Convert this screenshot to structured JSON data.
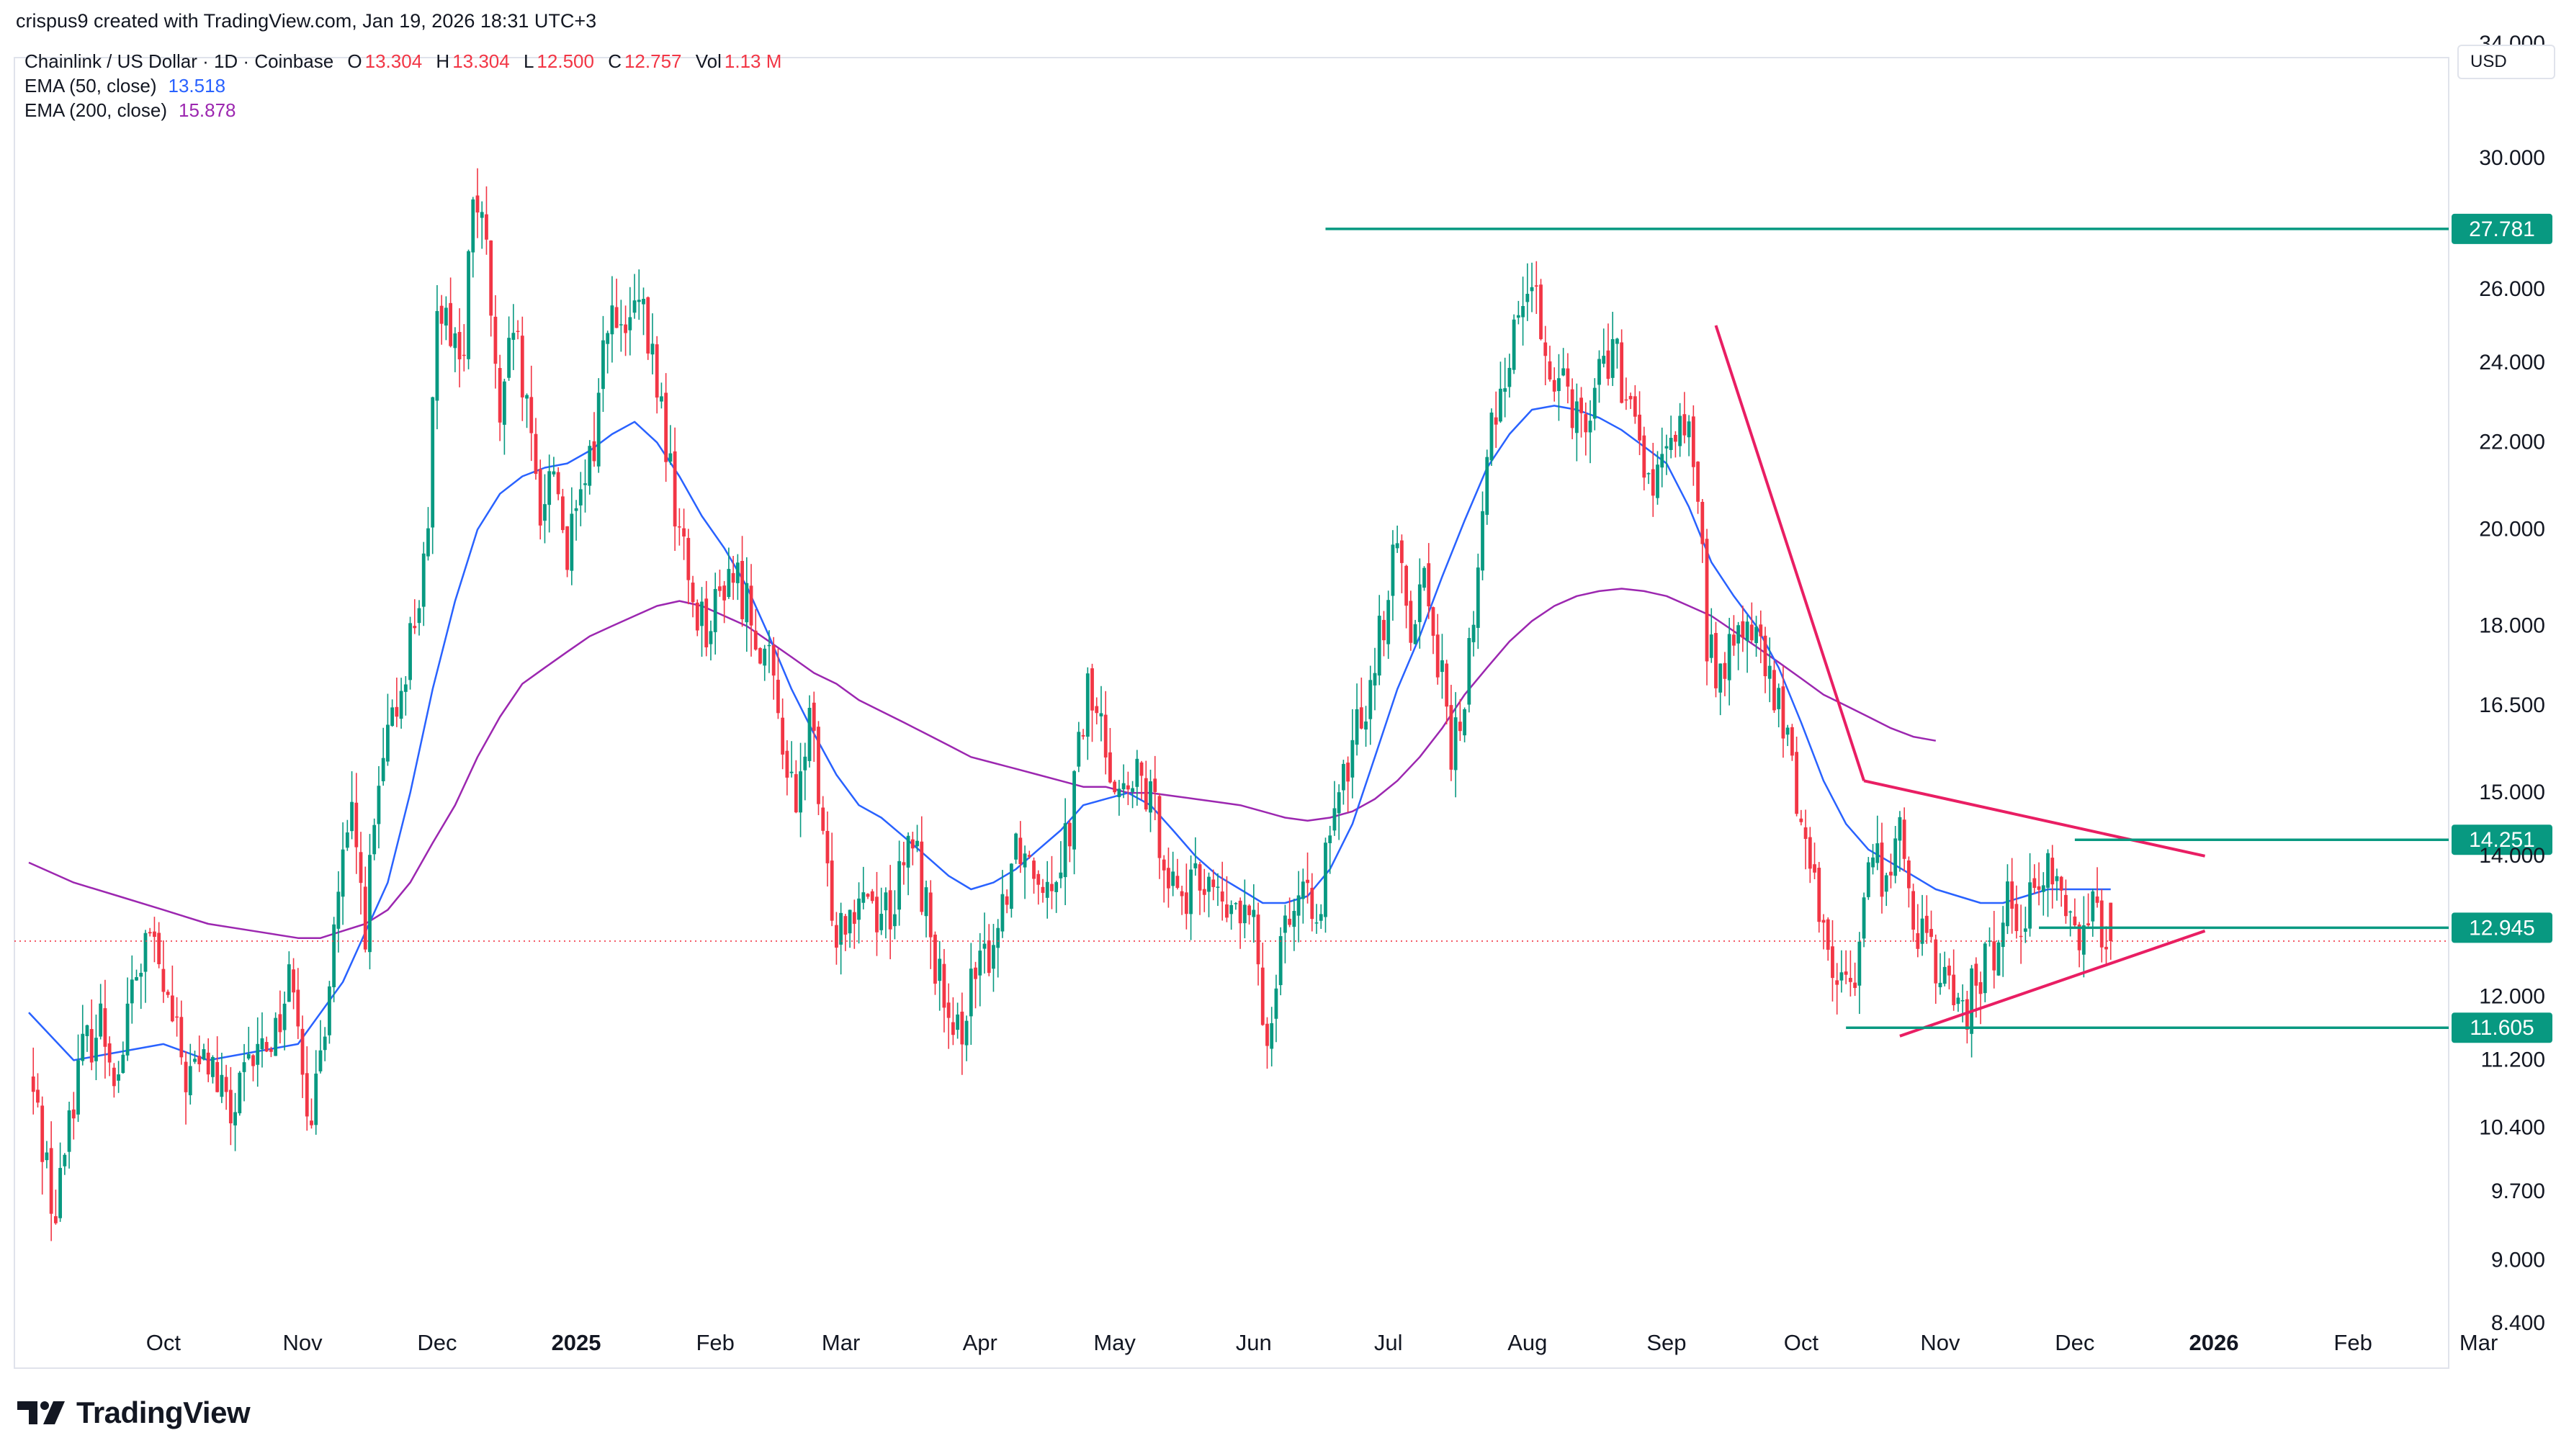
{
  "header": {
    "credit": "crispus9 created with TradingView.com, Jan 19, 2026 18:31 UTC+3",
    "symbol": "Chainlink / US Dollar · 1D · Coinbase",
    "ohlc": {
      "o_label": "O",
      "o": "13.304",
      "h_label": "H",
      "h": "13.304",
      "l_label": "L",
      "l": "12.500",
      "c_label": "C",
      "c": "12.757",
      "vol_label": "Vol",
      "vol": "1.13 M"
    },
    "ema50": {
      "label": "EMA (50, close)",
      "value": "13.518"
    },
    "ema200": {
      "label": "EMA (200, close)",
      "value": "15.878"
    }
  },
  "currency": "USD",
  "logo_text": "TradingView",
  "colors": {
    "up": "#089981",
    "down": "#f23645",
    "ema50": "#2962ff",
    "ema200": "#9c27b0",
    "trend": "#e91e63",
    "level": "#089981"
  },
  "chart_data": {
    "type": "candlestick",
    "title": "Chainlink / US Dollar · 1D · Coinbase",
    "yscale": "log",
    "ylim": [
      8.0,
      33.5
    ],
    "y_ticks": [
      "34.000",
      "30.000",
      "26.000",
      "24.000",
      "22.000",
      "20.000",
      "18.000",
      "16.500",
      "15.000",
      "14.000",
      "12.000",
      "11.200",
      "10.400",
      "9.700",
      "9.000",
      "8.400"
    ],
    "x_labels": [
      {
        "label": "Oct",
        "day": 0
      },
      {
        "label": "Nov",
        "day": 31
      },
      {
        "label": "Dec",
        "day": 61
      },
      {
        "label": "2025",
        "day": 92,
        "bold": true
      },
      {
        "label": "Feb",
        "day": 123
      },
      {
        "label": "Mar",
        "day": 151
      },
      {
        "label": "Apr",
        "day": 182
      },
      {
        "label": "May",
        "day": 212
      },
      {
        "label": "Jun",
        "day": 243
      },
      {
        "label": "Jul",
        "day": 273
      },
      {
        "label": "Aug",
        "day": 304
      },
      {
        "label": "Sep",
        "day": 335
      },
      {
        "label": "Oct",
        "day": 365
      },
      {
        "label": "Nov",
        "day": 396
      },
      {
        "label": "Dec",
        "day": 426
      },
      {
        "label": "2026",
        "day": 457,
        "bold": true
      },
      {
        "label": "Feb",
        "day": 488
      },
      {
        "label": "Mar",
        "day": 516
      }
    ],
    "start_day": -30,
    "end_day": 475,
    "price_path": [
      [
        -30,
        11.0
      ],
      [
        -27,
        10.3
      ],
      [
        -24,
        9.4
      ],
      [
        -21,
        10.6
      ],
      [
        -18,
        11.3
      ],
      [
        -14,
        11.7
      ],
      [
        -10,
        11.0
      ],
      [
        -7,
        12.1
      ],
      [
        -3,
        12.8
      ],
      [
        0,
        12.1
      ],
      [
        5,
        11.0
      ],
      [
        10,
        11.2
      ],
      [
        15,
        10.5
      ],
      [
        20,
        11.2
      ],
      [
        25,
        11.6
      ],
      [
        29,
        12.4
      ],
      [
        33,
        10.2
      ],
      [
        36,
        11.8
      ],
      [
        39,
        13.5
      ],
      [
        42,
        14.5
      ],
      [
        45,
        13.0
      ],
      [
        48,
        15.0
      ],
      [
        52,
        16.5
      ],
      [
        56,
        18.2
      ],
      [
        59,
        19.5
      ],
      [
        61,
        26.0
      ],
      [
        64,
        25.0
      ],
      [
        67,
        24.0
      ],
      [
        69,
        29.0
      ],
      [
        72,
        27.0
      ],
      [
        75,
        22.0
      ],
      [
        78,
        25.0
      ],
      [
        81,
        22.5
      ],
      [
        84,
        20.5
      ],
      [
        87,
        21.5
      ],
      [
        90,
        19.5
      ],
      [
        93,
        20.5
      ],
      [
        96,
        22.0
      ],
      [
        99,
        25.5
      ],
      [
        102,
        24.5
      ],
      [
        106,
        25.5
      ],
      [
        110,
        23.5
      ],
      [
        114,
        20.5
      ],
      [
        118,
        18.5
      ],
      [
        122,
        18.0
      ],
      [
        126,
        19.2
      ],
      [
        130,
        18.5
      ],
      [
        134,
        17.5
      ],
      [
        138,
        16.0
      ],
      [
        141,
        14.5
      ],
      [
        144,
        16.5
      ],
      [
        147,
        14.0
      ],
      [
        150,
        13.0
      ],
      [
        153,
        13.3
      ],
      [
        156,
        13.6
      ],
      [
        159,
        13.2
      ],
      [
        163,
        13.3
      ],
      [
        167,
        14.3
      ],
      [
        170,
        13.2
      ],
      [
        173,
        12.2
      ],
      [
        176,
        11.2
      ],
      [
        179,
        12.0
      ],
      [
        182,
        12.3
      ],
      [
        186,
        13.0
      ],
      [
        190,
        14.3
      ],
      [
        194,
        13.9
      ],
      [
        198,
        13.7
      ],
      [
        202,
        14.5
      ],
      [
        206,
        16.8
      ],
      [
        210,
        15.8
      ],
      [
        214,
        14.9
      ],
      [
        218,
        15.2
      ],
      [
        222,
        14.4
      ],
      [
        225,
        13.6
      ],
      [
        229,
        13.4
      ],
      [
        233,
        13.8
      ],
      [
        236,
        13.1
      ],
      [
        239,
        13.2
      ],
      [
        243,
        12.9
      ],
      [
        246,
        11.4
      ],
      [
        249,
        13.0
      ],
      [
        252,
        13.3
      ],
      [
        255,
        13.2
      ],
      [
        258,
        13.5
      ],
      [
        262,
        14.8
      ],
      [
        265,
        15.8
      ],
      [
        268,
        16.7
      ],
      [
        272,
        18.2
      ],
      [
        275,
        19.6
      ],
      [
        278,
        18.2
      ],
      [
        281,
        19.0
      ],
      [
        284,
        17.5
      ],
      [
        287,
        15.6
      ],
      [
        290,
        16.6
      ],
      [
        293,
        19.0
      ],
      [
        296,
        22.5
      ],
      [
        299,
        23.8
      ],
      [
        302,
        25.4
      ],
      [
        305,
        26.5
      ],
      [
        308,
        23.5
      ],
      [
        311,
        24.2
      ],
      [
        314,
        23.0
      ],
      [
        317,
        22.5
      ],
      [
        320,
        23.8
      ],
      [
        323,
        24.5
      ],
      [
        326,
        22.8
      ],
      [
        329,
        22.0
      ],
      [
        332,
        20.8
      ],
      [
        335,
        21.5
      ],
      [
        338,
        22.8
      ],
      [
        341,
        21.8
      ],
      [
        344,
        17.8
      ],
      [
        347,
        17.0
      ],
      [
        350,
        17.6
      ],
      [
        353,
        18.2
      ],
      [
        356,
        17.4
      ],
      [
        360,
        16.4
      ],
      [
        363,
        15.5
      ],
      [
        366,
        14.2
      ],
      [
        369,
        13.3
      ],
      [
        372,
        12.5
      ],
      [
        375,
        12.0
      ],
      [
        378,
        12.7
      ],
      [
        381,
        14.2
      ],
      [
        384,
        13.6
      ],
      [
        387,
        14.3
      ],
      [
        390,
        13.2
      ],
      [
        393,
        12.6
      ],
      [
        396,
        12.3
      ],
      [
        399,
        12.0
      ],
      [
        402,
        11.9
      ],
      [
        405,
        12.3
      ],
      [
        408,
        12.6
      ],
      [
        411,
        13.4
      ],
      [
        414,
        13.2
      ],
      [
        417,
        13.3
      ],
      [
        420,
        14.0
      ],
      [
        423,
        13.3
      ],
      [
        426,
        12.9
      ],
      [
        430,
        13.3
      ],
      [
        434,
        12.8
      ]
    ],
    "ema50": [
      [
        -30,
        11.8
      ],
      [
        -20,
        11.2
      ],
      [
        -10,
        11.3
      ],
      [
        0,
        11.4
      ],
      [
        10,
        11.2
      ],
      [
        20,
        11.3
      ],
      [
        30,
        11.4
      ],
      [
        40,
        12.2
      ],
      [
        50,
        13.6
      ],
      [
        55,
        15.0
      ],
      [
        60,
        16.8
      ],
      [
        65,
        18.5
      ],
      [
        70,
        20.0
      ],
      [
        75,
        20.8
      ],
      [
        80,
        21.2
      ],
      [
        85,
        21.4
      ],
      [
        90,
        21.5
      ],
      [
        95,
        21.8
      ],
      [
        100,
        22.2
      ],
      [
        105,
        22.5
      ],
      [
        110,
        22.0
      ],
      [
        115,
        21.2
      ],
      [
        120,
        20.3
      ],
      [
        125,
        19.6
      ],
      [
        130,
        18.8
      ],
      [
        135,
        17.8
      ],
      [
        140,
        16.8
      ],
      [
        145,
        16.0
      ],
      [
        150,
        15.3
      ],
      [
        155,
        14.8
      ],
      [
        160,
        14.6
      ],
      [
        165,
        14.3
      ],
      [
        170,
        14.0
      ],
      [
        175,
        13.7
      ],
      [
        180,
        13.5
      ],
      [
        185,
        13.6
      ],
      [
        190,
        13.8
      ],
      [
        195,
        14.1
      ],
      [
        200,
        14.4
      ],
      [
        205,
        14.8
      ],
      [
        210,
        14.9
      ],
      [
        215,
        15.0
      ],
      [
        220,
        14.8
      ],
      [
        225,
        14.4
      ],
      [
        230,
        14.0
      ],
      [
        235,
        13.7
      ],
      [
        240,
        13.5
      ],
      [
        245,
        13.3
      ],
      [
        250,
        13.3
      ],
      [
        255,
        13.4
      ],
      [
        260,
        13.8
      ],
      [
        265,
        14.5
      ],
      [
        270,
        15.6
      ],
      [
        275,
        16.8
      ],
      [
        280,
        17.8
      ],
      [
        285,
        19.0
      ],
      [
        290,
        20.2
      ],
      [
        295,
        21.4
      ],
      [
        300,
        22.2
      ],
      [
        305,
        22.8
      ],
      [
        310,
        22.9
      ],
      [
        315,
        22.8
      ],
      [
        320,
        22.6
      ],
      [
        325,
        22.3
      ],
      [
        330,
        21.9
      ],
      [
        335,
        21.5
      ],
      [
        340,
        20.5
      ],
      [
        345,
        19.3
      ],
      [
        350,
        18.6
      ],
      [
        355,
        18.0
      ],
      [
        360,
        17.2
      ],
      [
        365,
        16.2
      ],
      [
        370,
        15.2
      ],
      [
        375,
        14.5
      ],
      [
        380,
        14.1
      ],
      [
        385,
        13.9
      ],
      [
        390,
        13.7
      ],
      [
        395,
        13.5
      ],
      [
        400,
        13.4
      ],
      [
        405,
        13.3
      ],
      [
        410,
        13.3
      ],
      [
        415,
        13.4
      ],
      [
        420,
        13.5
      ],
      [
        425,
        13.5
      ],
      [
        430,
        13.5
      ],
      [
        434,
        13.5
      ]
    ],
    "ema200": [
      [
        -30,
        13.9
      ],
      [
        -20,
        13.6
      ],
      [
        -10,
        13.4
      ],
      [
        0,
        13.2
      ],
      [
        10,
        13.0
      ],
      [
        20,
        12.9
      ],
      [
        30,
        12.8
      ],
      [
        35,
        12.8
      ],
      [
        40,
        12.9
      ],
      [
        45,
        13.0
      ],
      [
        50,
        13.2
      ],
      [
        55,
        13.6
      ],
      [
        60,
        14.2
      ],
      [
        65,
        14.8
      ],
      [
        70,
        15.6
      ],
      [
        75,
        16.3
      ],
      [
        80,
        16.9
      ],
      [
        85,
        17.2
      ],
      [
        90,
        17.5
      ],
      [
        95,
        17.8
      ],
      [
        100,
        18.0
      ],
      [
        105,
        18.2
      ],
      [
        110,
        18.4
      ],
      [
        115,
        18.5
      ],
      [
        120,
        18.4
      ],
      [
        125,
        18.2
      ],
      [
        130,
        18.0
      ],
      [
        135,
        17.7
      ],
      [
        140,
        17.4
      ],
      [
        145,
        17.1
      ],
      [
        150,
        16.9
      ],
      [
        155,
        16.6
      ],
      [
        160,
        16.4
      ],
      [
        165,
        16.2
      ],
      [
        170,
        16.0
      ],
      [
        175,
        15.8
      ],
      [
        180,
        15.6
      ],
      [
        185,
        15.5
      ],
      [
        190,
        15.4
      ],
      [
        195,
        15.3
      ],
      [
        200,
        15.2
      ],
      [
        205,
        15.1
      ],
      [
        210,
        15.1
      ],
      [
        215,
        15.0
      ],
      [
        220,
        15.0
      ],
      [
        225,
        14.95
      ],
      [
        230,
        14.9
      ],
      [
        235,
        14.85
      ],
      [
        240,
        14.8
      ],
      [
        245,
        14.7
      ],
      [
        250,
        14.6
      ],
      [
        255,
        14.55
      ],
      [
        260,
        14.6
      ],
      [
        265,
        14.7
      ],
      [
        270,
        14.9
      ],
      [
        275,
        15.2
      ],
      [
        280,
        15.6
      ],
      [
        285,
        16.1
      ],
      [
        290,
        16.7
      ],
      [
        295,
        17.2
      ],
      [
        300,
        17.7
      ],
      [
        305,
        18.1
      ],
      [
        310,
        18.4
      ],
      [
        315,
        18.6
      ],
      [
        320,
        18.7
      ],
      [
        325,
        18.75
      ],
      [
        330,
        18.7
      ],
      [
        335,
        18.6
      ],
      [
        340,
        18.4
      ],
      [
        345,
        18.2
      ],
      [
        350,
        17.9
      ],
      [
        355,
        17.6
      ],
      [
        360,
        17.3
      ],
      [
        365,
        17.0
      ],
      [
        370,
        16.7
      ],
      [
        375,
        16.5
      ],
      [
        380,
        16.3
      ],
      [
        385,
        16.1
      ],
      [
        390,
        15.95
      ],
      [
        395,
        15.88
      ]
    ],
    "levels": [
      {
        "value": 27.781,
        "label": "27.781",
        "from_day": 259
      },
      {
        "value": 14.251,
        "label": "14.251",
        "from_day": 426
      },
      {
        "value": 12.945,
        "label": "12.945",
        "from_day": 418
      },
      {
        "value": 11.605,
        "label": "11.605",
        "from_day": 375
      }
    ],
    "last_price": 12.757,
    "trendlines": [
      {
        "from": [
          346,
          25.0
        ],
        "to": [
          379,
          15.2
        ]
      },
      {
        "from": [
          379,
          15.2
        ],
        "to": [
          455,
          14.0
        ]
      },
      {
        "from": [
          387,
          11.5
        ],
        "to": [
          455,
          12.9
        ]
      }
    ]
  }
}
